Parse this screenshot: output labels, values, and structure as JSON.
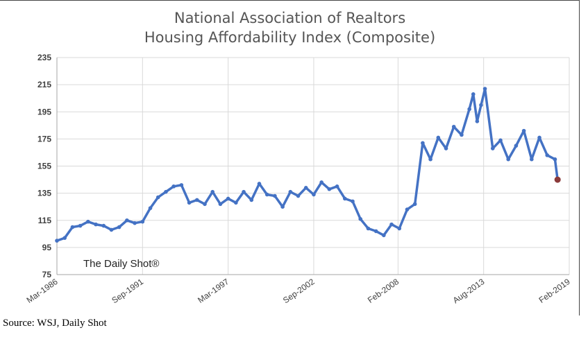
{
  "title_line1": "National Association of Realtors",
  "title_line2": "Housing Affordability Index (Composite)",
  "watermark": "The Daily Shot®",
  "source": "Source: WSJ, Daily Shot",
  "colors": {
    "line": "#4472C4",
    "last_point": "#8B3A3A",
    "grid": "#D9D9D9",
    "axis_text": "#404040"
  },
  "chart_data": {
    "type": "line",
    "title": "National Association of Realtors Housing Affordability Index (Composite)",
    "xlabel": "",
    "ylabel": "",
    "ylim": [
      75,
      235
    ],
    "y_ticks": [
      75,
      95,
      115,
      135,
      155,
      175,
      195,
      215,
      235
    ],
    "x_ticks": [
      "Mar-1986",
      "Sep-1991",
      "Mar-1997",
      "Sep-2002",
      "Feb-2008",
      "Aug-2013",
      "Feb-2019"
    ],
    "xlim": [
      "1986-03",
      "2019-02"
    ],
    "grid": true,
    "series": [
      {
        "name": "",
        "x": [
          "1986-03",
          "1986-09",
          "1987-03",
          "1987-09",
          "1988-03",
          "1988-09",
          "1989-03",
          "1989-09",
          "1990-03",
          "1990-09",
          "1991-03",
          "1991-09",
          "1992-03",
          "1992-09",
          "1993-03",
          "1993-09",
          "1994-03",
          "1994-09",
          "1995-03",
          "1995-09",
          "1996-03",
          "1996-09",
          "1997-03",
          "1997-09",
          "1998-03",
          "1998-09",
          "1999-03",
          "1999-09",
          "2000-03",
          "2000-09",
          "2001-03",
          "2001-09",
          "2002-03",
          "2002-09",
          "2003-03",
          "2003-09",
          "2004-03",
          "2004-09",
          "2005-03",
          "2005-09",
          "2006-03",
          "2006-09",
          "2007-03",
          "2007-09",
          "2008-03",
          "2008-09",
          "2009-03",
          "2009-09",
          "2010-03",
          "2010-09",
          "2011-03",
          "2011-09",
          "2012-03",
          "2012-09",
          "2012-12",
          "2013-03",
          "2013-06",
          "2013-09",
          "2014-03",
          "2014-09",
          "2015-03",
          "2015-09",
          "2016-03",
          "2016-09",
          "2017-03",
          "2017-09",
          "2018-03",
          "2018-05"
        ],
        "y": [
          100,
          102,
          110,
          111,
          114,
          112,
          111,
          108,
          110,
          115,
          113,
          114,
          124,
          132,
          136,
          140,
          141,
          128,
          130,
          127,
          136,
          127,
          131,
          128,
          136,
          130,
          142,
          134,
          133,
          125,
          136,
          133,
          139,
          134,
          143,
          138,
          140,
          131,
          129,
          116,
          109,
          107,
          104,
          112,
          109,
          123,
          127,
          172,
          160,
          176,
          168,
          184,
          178,
          197,
          208,
          188,
          200,
          212,
          168,
          174,
          160,
          170,
          181,
          160,
          176,
          163,
          160,
          145
        ]
      }
    ],
    "last_point": {
      "x": "2018-05",
      "y": 145
    }
  }
}
